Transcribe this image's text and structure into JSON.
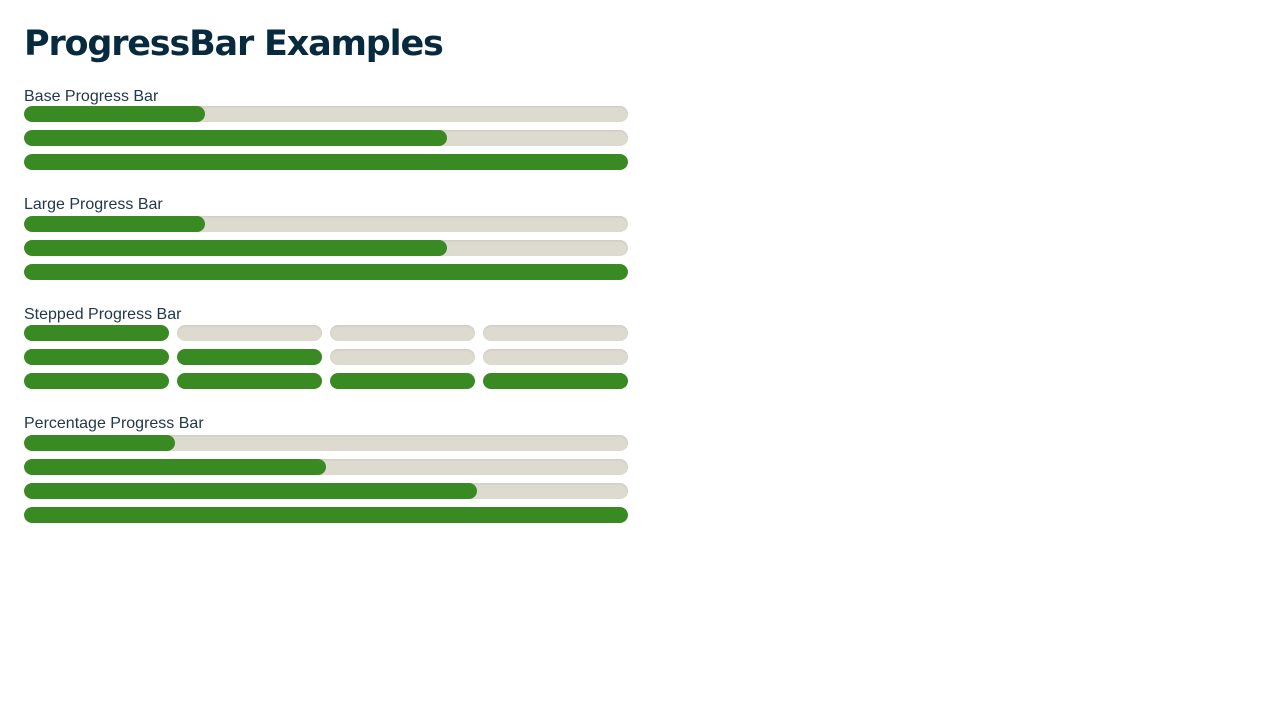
{
  "page": {
    "title": "ProgressBar Examples"
  },
  "colors": {
    "fill": "#3a8a23",
    "track": "#dddbd0",
    "title": "#082a3f",
    "label": "#23384a"
  },
  "sections": [
    {
      "id": "base",
      "label": "Base Progress Bar",
      "kind": "continuous",
      "values_percent": [
        30,
        70,
        100
      ]
    },
    {
      "id": "large",
      "label": "Large Progress Bar",
      "kind": "continuous",
      "values_percent": [
        30,
        70,
        100
      ]
    },
    {
      "id": "stepped",
      "label": "Stepped Progress Bar",
      "kind": "stepped",
      "total_steps": 4,
      "completed_steps": [
        1,
        2,
        4
      ]
    },
    {
      "id": "percentage",
      "label": "Percentage Progress Bar",
      "kind": "continuous",
      "values_percent": [
        25,
        50,
        75,
        100
      ]
    }
  ]
}
